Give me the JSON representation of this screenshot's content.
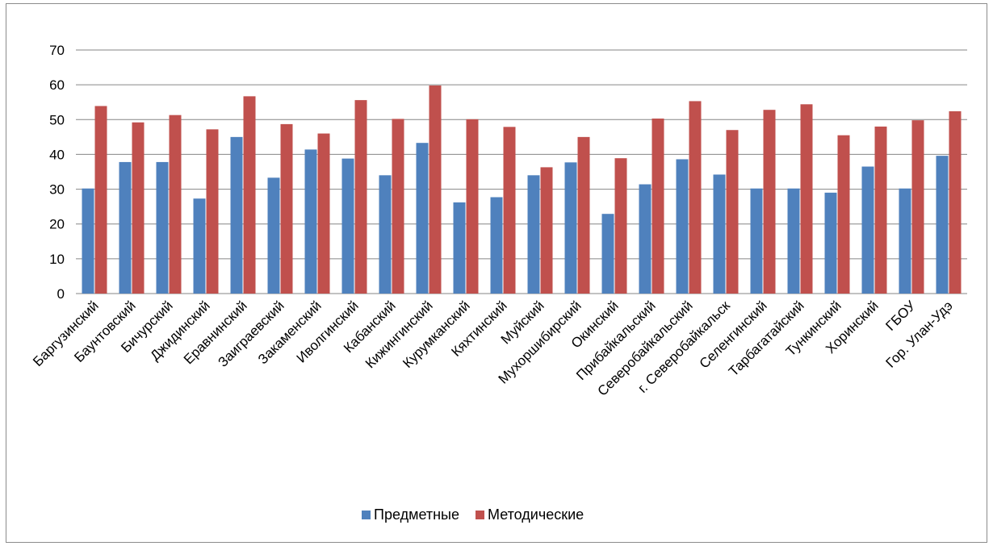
{
  "chart_data": {
    "type": "bar",
    "title": "",
    "xlabel": "",
    "ylabel": "",
    "ylim": [
      0,
      70
    ],
    "yticks": [
      0,
      10,
      20,
      30,
      40,
      50,
      60,
      70
    ],
    "grid": true,
    "legend_position": "bottom",
    "categories": [
      "Баргузинский",
      "Баунтовский",
      "Бичурский",
      "Джидинский",
      "Еравнинский",
      "Заиграевский",
      "Закаменский",
      "Иволгинский",
      "Кабанский",
      "Кижингинский",
      "Курумканский",
      "Кяхтинский",
      "Муйский",
      "Мухоршибирский",
      "Окинский",
      "Прибайкальский",
      "Северобайкальский",
      "г. Северобайкальск",
      "Селенгинский",
      "Тарбагатайский",
      "Тункинский",
      "Хоринский",
      "ГБОУ",
      "Гор. Улан-Удэ"
    ],
    "series": [
      {
        "name": "Предметные",
        "color": "#4f81bd",
        "values": [
          30.2,
          37.8,
          37.8,
          27.3,
          45.0,
          33.3,
          41.4,
          38.8,
          34.0,
          43.3,
          26.2,
          27.7,
          34.0,
          37.7,
          22.9,
          31.4,
          38.6,
          34.2,
          30.2,
          30.2,
          29.0,
          36.5,
          30.2,
          39.6
        ]
      },
      {
        "name": "Методические",
        "color": "#c0504d",
        "values": [
          53.9,
          49.2,
          51.3,
          47.2,
          56.7,
          48.7,
          46.0,
          55.6,
          50.2,
          59.8,
          50.1,
          47.9,
          36.3,
          45.0,
          38.9,
          50.3,
          55.3,
          47.0,
          52.8,
          54.4,
          45.5,
          48.0,
          49.8,
          52.4
        ]
      }
    ]
  }
}
